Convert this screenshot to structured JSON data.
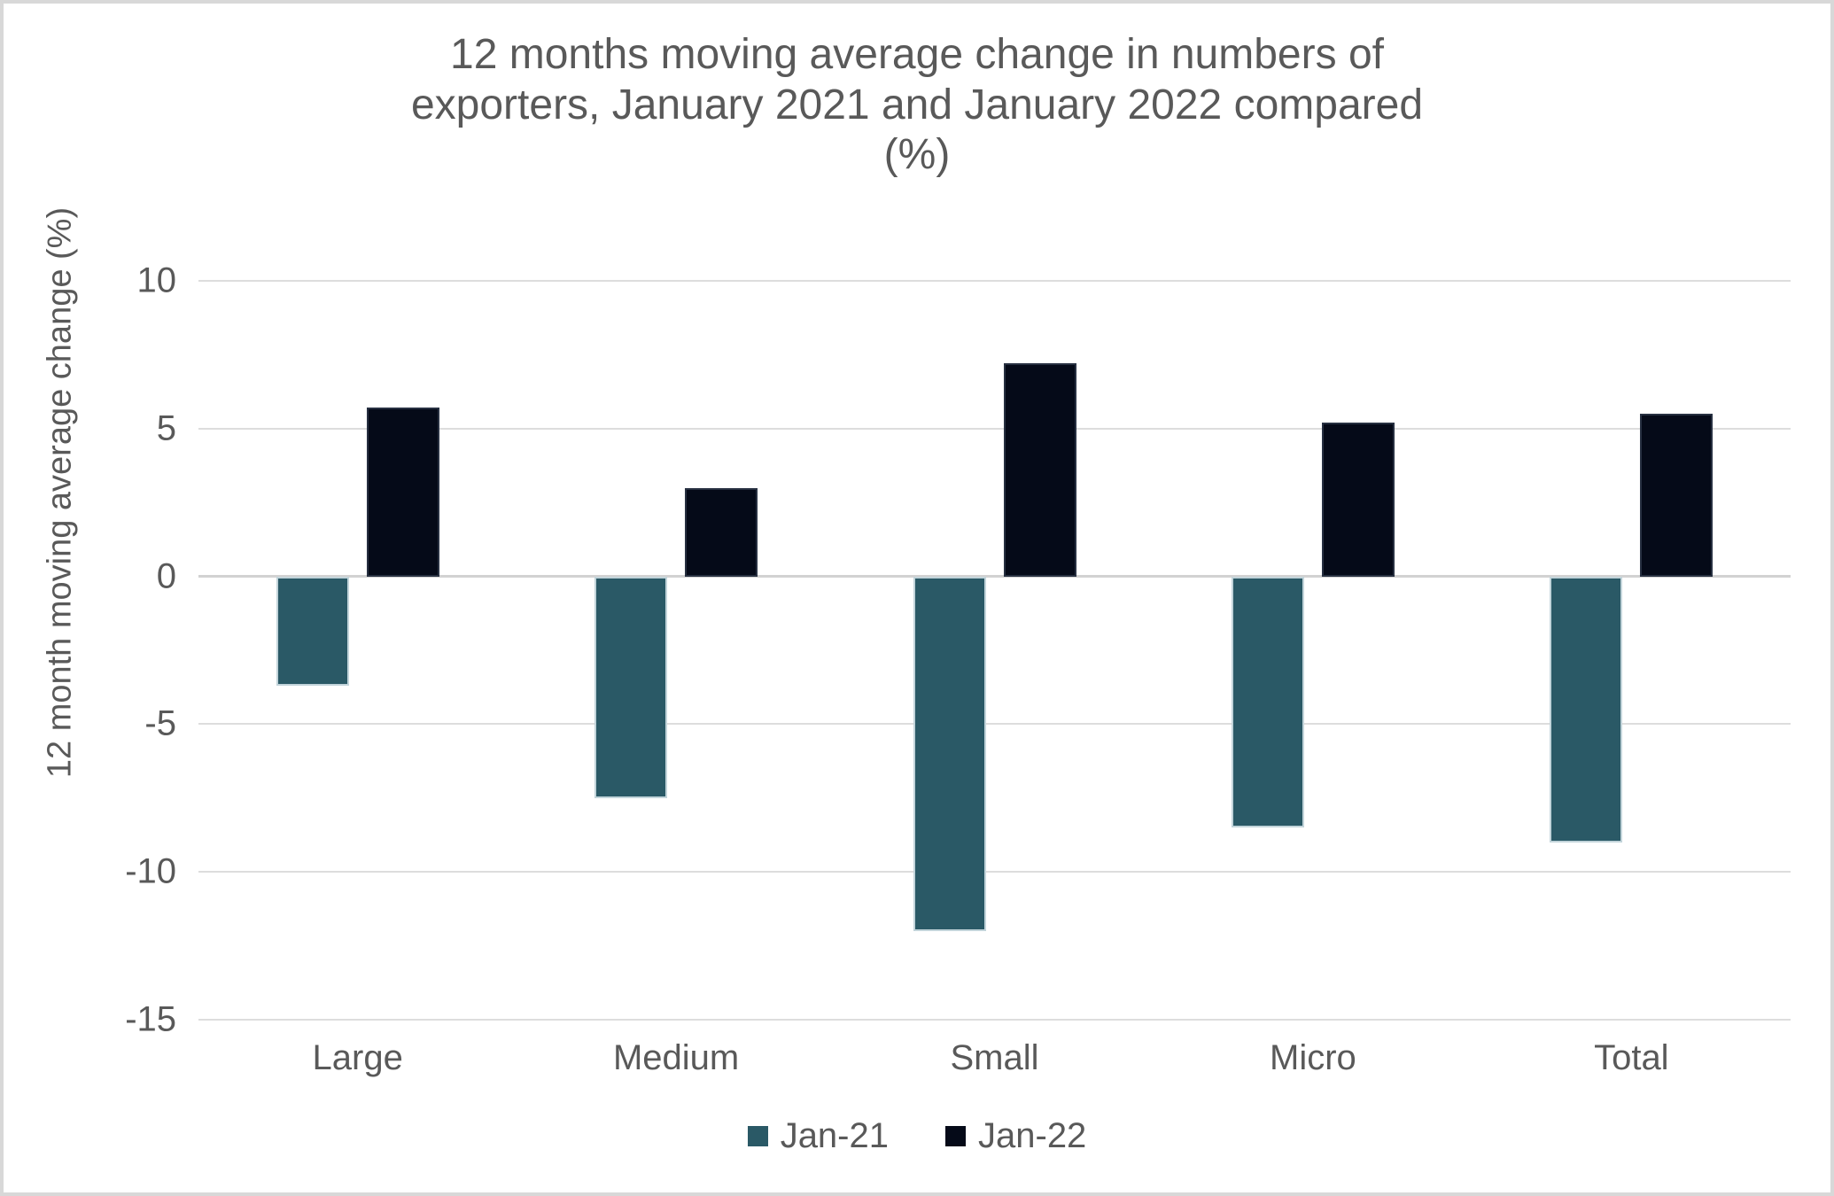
{
  "chart_data": {
    "type": "bar",
    "title": "12 months moving average change in numbers of exporters, January 2021 and January 2022 compared (%)",
    "title_lines": [
      "12 months moving average change in numbers of",
      "exporters, January 2021 and January 2022 compared",
      "(%)"
    ],
    "ylabel": "12 month moving average change (%)",
    "xlabel": "",
    "categories": [
      "Large",
      "Medium",
      "Small",
      "Micro",
      "Total"
    ],
    "series": [
      {
        "name": "Jan-21",
        "color": "#2A5966",
        "values": [
          -3.7,
          -7.5,
          -12.0,
          -8.5,
          -9.0
        ]
      },
      {
        "name": "Jan-22",
        "color": "#050A18",
        "values": [
          5.7,
          3.0,
          7.2,
          5.2,
          5.5
        ]
      }
    ],
    "ylim": [
      -15,
      10
    ],
    "yticks": [
      10,
      5,
      0,
      -5,
      -10,
      -15
    ],
    "grid": true,
    "legend_position": "bottom",
    "text_color": "#595959",
    "gridline_color": "#DDDDDD"
  }
}
